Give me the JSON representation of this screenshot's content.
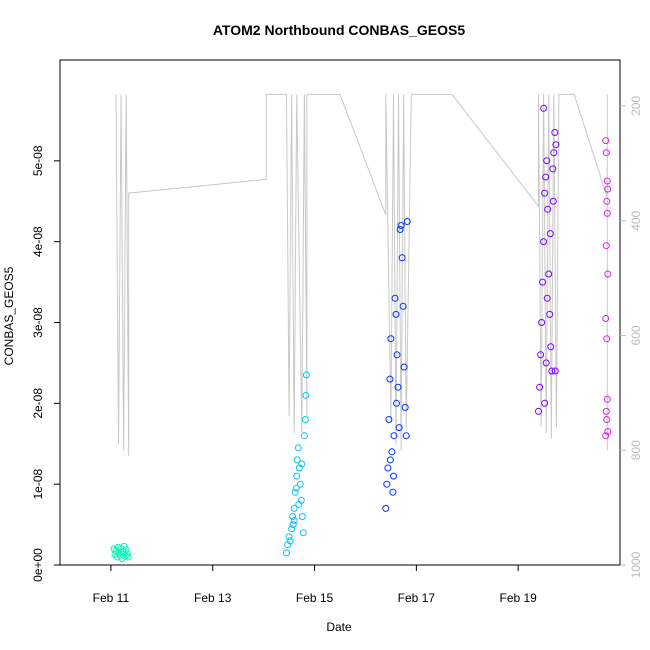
{
  "chart_data": {
    "type": "scatter",
    "title": "ATOM2 Northbound CONBAS_GEOS5",
    "xlabel": "Date",
    "ylabel": "CONBAS_GEOS5",
    "x_ticks": [
      "Feb 11",
      "Feb 13",
      "Feb 15",
      "Feb 17",
      "Feb 19"
    ],
    "y_ticks": [
      "0e+00",
      "1e-08",
      "2e-08",
      "3e-08",
      "4e-08",
      "5e-08"
    ],
    "y_right_ticks": [
      "200",
      "400",
      "600",
      "800",
      "1000"
    ],
    "grid": false,
    "colors": {
      "flight_track_line": "#c8c8c8",
      "right_axis": "#bbbbbb",
      "clusters": [
        "#00f5b8",
        "#00c6ff",
        "#0033ff",
        "#7a00ff",
        "#e01ee8"
      ]
    },
    "flight_track": {
      "note_units": "x in days after Feb 10 00:00; y_right in pressure (hPa)",
      "points": [
        [
          1.1,
          180
        ],
        [
          1.15,
          790
        ],
        [
          1.2,
          180
        ],
        [
          1.25,
          800
        ],
        [
          1.3,
          180
        ],
        [
          1.35,
          810
        ],
        [
          1.35,
          352
        ],
        [
          4.05,
          328
        ],
        [
          4.05,
          180
        ],
        [
          4.45,
          180
        ],
        [
          4.5,
          740
        ],
        [
          4.55,
          180
        ],
        [
          4.6,
          770
        ],
        [
          4.65,
          180
        ],
        [
          4.75,
          770
        ],
        [
          4.8,
          180
        ],
        [
          4.85,
          740
        ],
        [
          4.85,
          180
        ],
        [
          5.5,
          180
        ],
        [
          6.4,
          390
        ],
        [
          6.4,
          180
        ],
        [
          6.5,
          750
        ],
        [
          6.55,
          180
        ],
        [
          6.6,
          790
        ],
        [
          6.65,
          180
        ],
        [
          6.7,
          800
        ],
        [
          6.75,
          180
        ],
        [
          6.8,
          760
        ],
        [
          6.9,
          180
        ],
        [
          7.7,
          180
        ],
        [
          9.4,
          375
        ],
        [
          9.4,
          180
        ],
        [
          9.45,
          760
        ],
        [
          9.5,
          180
        ],
        [
          9.55,
          770
        ],
        [
          9.6,
          180
        ],
        [
          9.65,
          780
        ],
        [
          9.7,
          180
        ],
        [
          9.75,
          760
        ],
        [
          9.8,
          180
        ],
        [
          10.1,
          180
        ],
        [
          10.75,
          360
        ],
        [
          10.75,
          180
        ],
        [
          10.75,
          800
        ]
      ]
    },
    "series": [
      {
        "x_range": [
          1.05,
          1.35
        ],
        "x_center": 1.2,
        "points": [
          [
            1.06,
            2e-09
          ],
          [
            1.08,
            1.3e-09
          ],
          [
            1.1,
            1.8e-09
          ],
          [
            1.12,
            1e-09
          ],
          [
            1.14,
            2.2e-09
          ],
          [
            1.16,
            1.5e-09
          ],
          [
            1.18,
            1.2e-09
          ],
          [
            1.2,
            2e-09
          ],
          [
            1.22,
            8e-10
          ],
          [
            1.24,
            1.6e-09
          ],
          [
            1.26,
            2.3e-09
          ],
          [
            1.28,
            1.1e-09
          ],
          [
            1.3,
            1.9e-09
          ],
          [
            1.32,
            1.4e-09
          ],
          [
            1.34,
            1e-09
          ]
        ]
      },
      {
        "x_range": [
          4.45,
          4.85
        ],
        "x_center": 4.65,
        "points": [
          [
            4.45,
            1.5e-09
          ],
          [
            4.47,
            2.5e-09
          ],
          [
            4.5,
            3.5e-09
          ],
          [
            4.52,
            3e-09
          ],
          [
            4.55,
            4.5e-09
          ],
          [
            4.57,
            6e-09
          ],
          [
            4.6,
            5.5e-09
          ],
          [
            4.62,
            9e-09
          ],
          [
            4.65,
            1.1e-08
          ],
          [
            4.66,
            1.3e-08
          ],
          [
            4.68,
            1.45e-08
          ],
          [
            4.7,
            1.2e-08
          ],
          [
            4.72,
            1e-08
          ],
          [
            4.74,
            8e-09
          ],
          [
            4.76,
            6e-09
          ],
          [
            4.78,
            4e-09
          ],
          [
            4.8,
            1.6e-08
          ],
          [
            4.82,
            1.8e-08
          ],
          [
            4.83,
            2.1e-08
          ],
          [
            4.84,
            2.35e-08
          ],
          [
            4.6,
            7e-09
          ],
          [
            4.58,
            5e-09
          ],
          [
            4.64,
            9.5e-09
          ],
          [
            4.69,
            7.5e-09
          ],
          [
            4.75,
            1.25e-08
          ]
        ]
      },
      {
        "x_range": [
          6.4,
          6.85
        ],
        "x_center": 6.62,
        "points": [
          [
            6.4,
            7e-09
          ],
          [
            6.42,
            1e-08
          ],
          [
            6.44,
            1.2e-08
          ],
          [
            6.46,
            1.8e-08
          ],
          [
            6.48,
            2.3e-08
          ],
          [
            6.5,
            2.8e-08
          ],
          [
            6.52,
            1.4e-08
          ],
          [
            6.54,
            9e-09
          ],
          [
            6.56,
            1.6e-08
          ],
          [
            6.58,
            3.3e-08
          ],
          [
            6.6,
            3.1e-08
          ],
          [
            6.62,
            2.6e-08
          ],
          [
            6.64,
            2.2e-08
          ],
          [
            6.66,
            1.7e-08
          ],
          [
            6.68,
            4.15e-08
          ],
          [
            6.7,
            4.2e-08
          ],
          [
            6.72,
            3.8e-08
          ],
          [
            6.74,
            3.2e-08
          ],
          [
            6.76,
            2.45e-08
          ],
          [
            6.78,
            1.95e-08
          ],
          [
            6.8,
            1.6e-08
          ],
          [
            6.82,
            4.25e-08
          ],
          [
            6.55,
            1.1e-08
          ],
          [
            6.49,
            1.3e-08
          ],
          [
            6.61,
            2e-08
          ]
        ]
      },
      {
        "x_range": [
          9.4,
          9.75
        ],
        "x_center": 9.6,
        "points": [
          [
            9.4,
            1.9e-08
          ],
          [
            9.42,
            2.2e-08
          ],
          [
            9.44,
            2.6e-08
          ],
          [
            9.46,
            3e-08
          ],
          [
            9.48,
            3.5e-08
          ],
          [
            9.5,
            4e-08
          ],
          [
            9.52,
            4.6e-08
          ],
          [
            9.54,
            4.8e-08
          ],
          [
            9.56,
            5e-08
          ],
          [
            9.58,
            4.4e-08
          ],
          [
            9.6,
            3.6e-08
          ],
          [
            9.62,
            3.1e-08
          ],
          [
            9.64,
            2.7e-08
          ],
          [
            9.66,
            2.4e-08
          ],
          [
            9.68,
            4.9e-08
          ],
          [
            9.7,
            5.1e-08
          ],
          [
            9.72,
            5.35e-08
          ],
          [
            9.74,
            5.2e-08
          ],
          [
            9.52,
            2e-08
          ],
          [
            9.55,
            2.5e-08
          ],
          [
            9.57,
            3.3e-08
          ],
          [
            9.63,
            4.1e-08
          ],
          [
            9.69,
            4.5e-08
          ],
          [
            9.5,
            5.65e-08
          ],
          [
            9.73,
            2.4e-08
          ]
        ]
      },
      {
        "x_range": [
          10.7,
          10.8
        ],
        "x_center": 10.75,
        "points": [
          [
            10.72,
            5.25e-08
          ],
          [
            10.73,
            5.1e-08
          ],
          [
            10.75,
            4.75e-08
          ],
          [
            10.76,
            4.65e-08
          ],
          [
            10.74,
            4.5e-08
          ],
          [
            10.75,
            4.35e-08
          ],
          [
            10.73,
            3.95e-08
          ],
          [
            10.76,
            3.6e-08
          ],
          [
            10.72,
            3.05e-08
          ],
          [
            10.74,
            2.8e-08
          ],
          [
            10.75,
            2.05e-08
          ],
          [
            10.73,
            1.9e-08
          ],
          [
            10.74,
            1.8e-08
          ],
          [
            10.76,
            1.65e-08
          ],
          [
            10.72,
            1.6e-08
          ]
        ]
      }
    ],
    "x_domain": [
      0,
      11.0
    ],
    "y_domain": [
      0,
      6e-08
    ],
    "y_right_domain": [
      120,
      1000
    ]
  }
}
